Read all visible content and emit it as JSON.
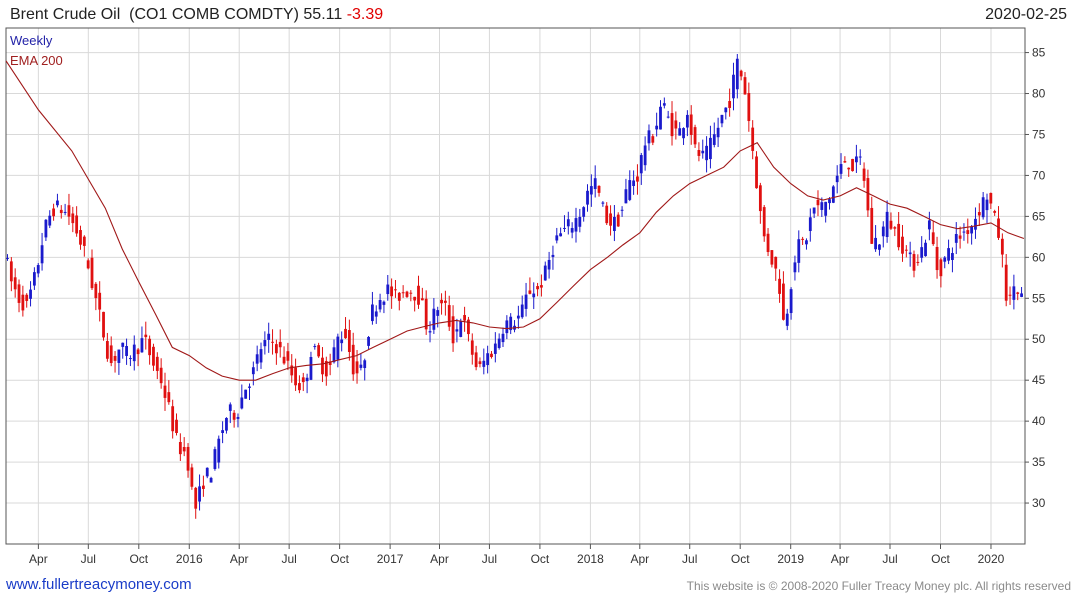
{
  "header": {
    "title": "Brent Crude Oil",
    "ticker": "(CO1 COMB COMDTY)",
    "last": "55.11",
    "change": "-3.39",
    "date": "2020-02-25"
  },
  "footer": {
    "site": "www.fullertreacymoney.com",
    "copyright": "This website is © 2008-2020 Fuller Treacy Money plc. All rights reserved"
  },
  "colors": {
    "up": "#1a1acc",
    "down": "#e01010",
    "ema": "#a01818",
    "grid": "#d9d9d9"
  },
  "chart_data": {
    "type": "line",
    "subtype": "weekly candlestick with moving average",
    "legend": [
      "Weekly",
      "EMA 200"
    ],
    "legend_position": "top-left",
    "y_axis": {
      "side": "right",
      "ylim": [
        25,
        88
      ],
      "ticks": [
        30,
        35,
        40,
        45,
        50,
        55,
        60,
        65,
        70,
        75,
        80,
        85
      ]
    },
    "x_axis": {
      "range": [
        "2015-02-01",
        "2020-03-03"
      ],
      "ticks": [
        {
          "label": "Apr",
          "date": "2015-04-01"
        },
        {
          "label": "Jul",
          "date": "2015-07-01"
        },
        {
          "label": "Oct",
          "date": "2015-10-01"
        },
        {
          "label": "2016",
          "date": "2016-01-01"
        },
        {
          "label": "Apr",
          "date": "2016-04-01"
        },
        {
          "label": "Jul",
          "date": "2016-07-01"
        },
        {
          "label": "Oct",
          "date": "2016-10-01"
        },
        {
          "label": "2017",
          "date": "2017-01-01"
        },
        {
          "label": "Apr",
          "date": "2017-04-01"
        },
        {
          "label": "Jul",
          "date": "2017-07-01"
        },
        {
          "label": "Oct",
          "date": "2017-10-01"
        },
        {
          "label": "2018",
          "date": "2018-01-01"
        },
        {
          "label": "Apr",
          "date": "2018-04-01"
        },
        {
          "label": "Jul",
          "date": "2018-07-01"
        },
        {
          "label": "Oct",
          "date": "2018-10-01"
        },
        {
          "label": "2019",
          "date": "2019-01-01"
        },
        {
          "label": "Apr",
          "date": "2019-04-01"
        },
        {
          "label": "Jul",
          "date": "2019-07-01"
        },
        {
          "label": "Oct",
          "date": "2019-10-01"
        },
        {
          "label": "2020",
          "date": "2020-01-01"
        }
      ]
    },
    "grid": true,
    "price_path": [
      [
        "2015-02-01",
        61
      ],
      [
        "2015-02-15",
        57
      ],
      [
        "2015-03-01",
        55
      ],
      [
        "2015-03-15",
        54
      ],
      [
        "2015-04-01",
        58
      ],
      [
        "2015-04-15",
        63
      ],
      [
        "2015-05-01",
        66
      ],
      [
        "2015-05-15",
        66
      ],
      [
        "2015-06-01",
        65
      ],
      [
        "2015-06-15",
        63
      ],
      [
        "2015-07-01",
        60
      ],
      [
        "2015-07-15",
        56
      ],
      [
        "2015-08-01",
        51
      ],
      [
        "2015-08-15",
        47
      ],
      [
        "2015-09-01",
        49
      ],
      [
        "2015-09-15",
        48
      ],
      [
        "2015-10-01",
        49
      ],
      [
        "2015-10-15",
        50
      ],
      [
        "2015-11-01",
        47
      ],
      [
        "2015-11-15",
        45
      ],
      [
        "2015-12-01",
        41
      ],
      [
        "2015-12-15",
        37
      ],
      [
        "2016-01-01",
        36
      ],
      [
        "2016-01-15",
        29
      ],
      [
        "2016-02-01",
        33
      ],
      [
        "2016-02-15",
        34
      ],
      [
        "2016-03-01",
        38
      ],
      [
        "2016-03-15",
        41
      ],
      [
        "2016-04-01",
        41
      ],
      [
        "2016-04-15",
        44
      ],
      [
        "2016-05-01",
        46
      ],
      [
        "2016-05-15",
        49
      ],
      [
        "2016-06-01",
        50
      ],
      [
        "2016-06-15",
        49
      ],
      [
        "2016-07-01",
        47
      ],
      [
        "2016-07-15",
        45
      ],
      [
        "2016-08-01",
        44
      ],
      [
        "2016-08-15",
        49
      ],
      [
        "2016-09-01",
        47
      ],
      [
        "2016-09-15",
        46
      ],
      [
        "2016-10-01",
        50
      ],
      [
        "2016-10-15",
        51
      ],
      [
        "2016-11-01",
        46
      ],
      [
        "2016-11-15",
        46
      ],
      [
        "2016-12-01",
        53
      ],
      [
        "2016-12-15",
        55
      ],
      [
        "2017-01-01",
        56
      ],
      [
        "2017-01-15",
        55
      ],
      [
        "2017-02-01",
        56
      ],
      [
        "2017-02-15",
        56
      ],
      [
        "2017-03-01",
        55
      ],
      [
        "2017-03-15",
        51
      ],
      [
        "2017-04-01",
        54
      ],
      [
        "2017-04-15",
        54
      ],
      [
        "2017-05-01",
        50
      ],
      [
        "2017-05-15",
        53
      ],
      [
        "2017-06-01",
        49
      ],
      [
        "2017-06-15",
        46
      ],
      [
        "2017-07-01",
        48
      ],
      [
        "2017-07-15",
        49
      ],
      [
        "2017-08-01",
        52
      ],
      [
        "2017-08-15",
        52
      ],
      [
        "2017-09-01",
        53
      ],
      [
        "2017-09-15",
        56
      ],
      [
        "2017-10-01",
        56
      ],
      [
        "2017-10-15",
        58
      ],
      [
        "2017-11-01",
        62
      ],
      [
        "2017-11-15",
        63
      ],
      [
        "2017-12-01",
        64
      ],
      [
        "2017-12-15",
        65
      ],
      [
        "2018-01-01",
        68
      ],
      [
        "2018-01-15",
        69
      ],
      [
        "2018-02-01",
        65
      ],
      [
        "2018-02-15",
        64
      ],
      [
        "2018-03-01",
        65
      ],
      [
        "2018-03-15",
        69
      ],
      [
        "2018-04-01",
        70
      ],
      [
        "2018-04-15",
        74
      ],
      [
        "2018-05-01",
        75
      ],
      [
        "2018-05-15",
        79
      ],
      [
        "2018-06-01",
        76
      ],
      [
        "2018-06-15",
        75
      ],
      [
        "2018-07-01",
        78
      ],
      [
        "2018-07-15",
        73
      ],
      [
        "2018-08-01",
        72
      ],
      [
        "2018-08-15",
        74
      ],
      [
        "2018-09-01",
        77
      ],
      [
        "2018-09-15",
        79
      ],
      [
        "2018-10-01",
        84
      ],
      [
        "2018-10-15",
        80
      ],
      [
        "2018-11-01",
        71
      ],
      [
        "2018-11-15",
        63
      ],
      [
        "2018-12-01",
        60
      ],
      [
        "2018-12-15",
        57
      ],
      [
        "2018-12-25",
        51
      ],
      [
        "2019-01-01",
        55
      ],
      [
        "2019-01-15",
        61
      ],
      [
        "2019-02-01",
        62
      ],
      [
        "2019-02-15",
        66
      ],
      [
        "2019-03-01",
        66
      ],
      [
        "2019-03-15",
        67
      ],
      [
        "2019-04-01",
        70
      ],
      [
        "2019-04-15",
        72
      ],
      [
        "2019-05-01",
        71
      ],
      [
        "2019-05-15",
        72
      ],
      [
        "2019-06-01",
        62
      ],
      [
        "2019-06-15",
        62
      ],
      [
        "2019-07-01",
        65
      ],
      [
        "2019-07-15",
        63
      ],
      [
        "2019-08-01",
        61
      ],
      [
        "2019-08-15",
        59
      ],
      [
        "2019-09-01",
        61
      ],
      [
        "2019-09-15",
        64
      ],
      [
        "2019-10-01",
        58
      ],
      [
        "2019-10-15",
        60
      ],
      [
        "2019-11-01",
        62
      ],
      [
        "2019-11-15",
        63
      ],
      [
        "2019-12-01",
        64
      ],
      [
        "2019-12-15",
        66
      ],
      [
        "2020-01-01",
        68
      ],
      [
        "2020-01-08",
        65
      ],
      [
        "2020-01-15",
        64
      ],
      [
        "2020-01-22",
        62
      ],
      [
        "2020-02-01",
        56
      ],
      [
        "2020-02-08",
        54
      ],
      [
        "2020-02-15",
        57
      ],
      [
        "2020-02-25",
        55.11
      ]
    ],
    "ema_200": [
      [
        "2015-02-01",
        84
      ],
      [
        "2015-04-01",
        78
      ],
      [
        "2015-06-01",
        73
      ],
      [
        "2015-08-01",
        66
      ],
      [
        "2015-09-01",
        61
      ],
      [
        "2015-10-01",
        57
      ],
      [
        "2015-11-01",
        53
      ],
      [
        "2015-12-01",
        49
      ],
      [
        "2016-01-01",
        48
      ],
      [
        "2016-02-01",
        46.5
      ],
      [
        "2016-03-01",
        45.5
      ],
      [
        "2016-04-01",
        45
      ],
      [
        "2016-05-01",
        45
      ],
      [
        "2016-06-01",
        45.8
      ],
      [
        "2016-07-01",
        46.5
      ],
      [
        "2016-08-01",
        46.8
      ],
      [
        "2016-09-01",
        47
      ],
      [
        "2016-10-01",
        47.5
      ],
      [
        "2016-11-01",
        48
      ],
      [
        "2016-12-01",
        49
      ],
      [
        "2017-01-01",
        50
      ],
      [
        "2017-02-01",
        51
      ],
      [
        "2017-03-01",
        51.5
      ],
      [
        "2017-04-01",
        52
      ],
      [
        "2017-05-01",
        52.3
      ],
      [
        "2017-06-01",
        52
      ],
      [
        "2017-07-01",
        51.5
      ],
      [
        "2017-08-01",
        51.3
      ],
      [
        "2017-09-01",
        51.5
      ],
      [
        "2017-10-01",
        52.5
      ],
      [
        "2017-11-01",
        54.5
      ],
      [
        "2017-12-01",
        56.5
      ],
      [
        "2018-01-01",
        58.5
      ],
      [
        "2018-02-01",
        60
      ],
      [
        "2018-03-01",
        61.5
      ],
      [
        "2018-04-01",
        63
      ],
      [
        "2018-05-01",
        65.5
      ],
      [
        "2018-06-01",
        67.5
      ],
      [
        "2018-07-01",
        69
      ],
      [
        "2018-08-01",
        70
      ],
      [
        "2018-09-01",
        71
      ],
      [
        "2018-10-01",
        73
      ],
      [
        "2018-11-01",
        74
      ],
      [
        "2018-12-01",
        71
      ],
      [
        "2019-01-01",
        69
      ],
      [
        "2019-02-01",
        67.5
      ],
      [
        "2019-03-01",
        67
      ],
      [
        "2019-04-01",
        67.5
      ],
      [
        "2019-05-01",
        68.5
      ],
      [
        "2019-06-01",
        67.5
      ],
      [
        "2019-07-01",
        66.5
      ],
      [
        "2019-08-01",
        66
      ],
      [
        "2019-09-01",
        65
      ],
      [
        "2019-10-01",
        64
      ],
      [
        "2019-11-01",
        63.5
      ],
      [
        "2019-12-01",
        63.8
      ],
      [
        "2020-01-01",
        64.2
      ],
      [
        "2020-02-01",
        63
      ],
      [
        "2020-03-01",
        62.3
      ]
    ]
  }
}
